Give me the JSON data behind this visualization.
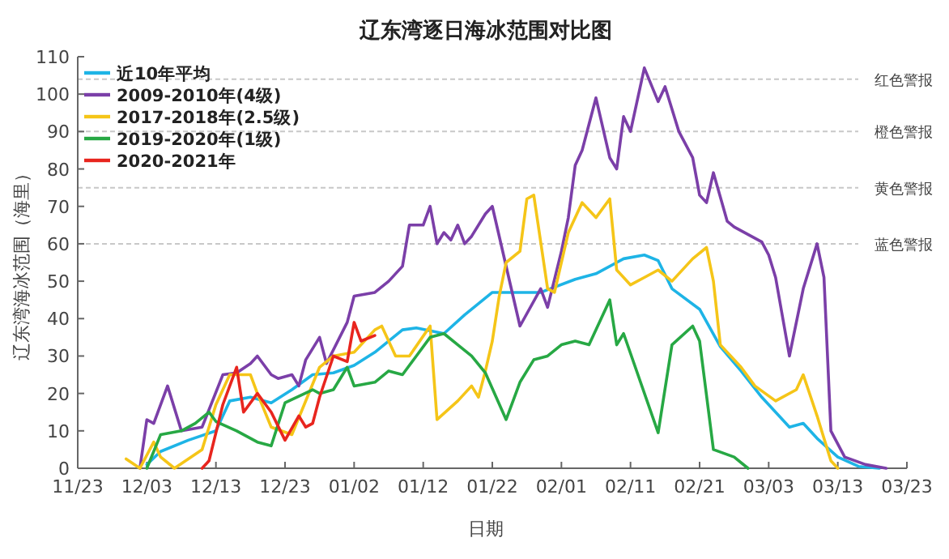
{
  "chart_data": {
    "type": "line",
    "title": "辽东湾逐日海冰范围对比图",
    "xlabel": "日期",
    "ylabel": "辽东湾海冰范围（海里）",
    "xlim": [
      "2020-11-23",
      "2021-03-23"
    ],
    "xticks": [
      {
        "value": "2020-11-23",
        "label": "11/23"
      },
      {
        "value": "2020-12-03",
        "label": "12/03"
      },
      {
        "value": "2020-12-13",
        "label": "12/13"
      },
      {
        "value": "2020-12-23",
        "label": "12/23"
      },
      {
        "value": "2021-01-02",
        "label": "01/02"
      },
      {
        "value": "2021-01-12",
        "label": "01/12"
      },
      {
        "value": "2021-01-22",
        "label": "01/22"
      },
      {
        "value": "2021-02-01",
        "label": "02/01"
      },
      {
        "value": "2021-02-11",
        "label": "02/11"
      },
      {
        "value": "2021-02-21",
        "label": "02/21"
      },
      {
        "value": "2021-03-03",
        "label": "03/03"
      },
      {
        "value": "2021-03-13",
        "label": "03/13"
      },
      {
        "value": "2021-03-23",
        "label": "03/23"
      }
    ],
    "ylim": [
      0,
      110
    ],
    "yticks": [
      0,
      10,
      20,
      30,
      40,
      50,
      60,
      70,
      80,
      90,
      100,
      110
    ],
    "legend": "top left",
    "ref_lines": [
      {
        "axis": "y",
        "value": 104,
        "label": "红色警报",
        "color": "#c8c8c8",
        "line_style": "dashed"
      },
      {
        "axis": "y",
        "value": 90,
        "label": "橙色警报",
        "color": "#c8c8c8",
        "line_style": "dashed"
      },
      {
        "axis": "y",
        "value": 75,
        "label": "黄色警报",
        "color": "#c8c8c8",
        "line_style": "dashed"
      },
      {
        "axis": "y",
        "value": 60,
        "label": "蓝色警报",
        "color": "#c8c8c8",
        "line_style": "dashed"
      }
    ],
    "series": [
      {
        "name": "近10年平均",
        "color": "#1eb4e6",
        "x": [
          "2020-12-03",
          "2020-12-05",
          "2020-12-09",
          "2020-12-13",
          "2020-12-15",
          "2020-12-18",
          "2020-12-21",
          "2020-12-24",
          "2020-12-27",
          "2020-12-30",
          "2021-01-02",
          "2021-01-05",
          "2021-01-09",
          "2021-01-11",
          "2021-01-15",
          "2021-01-18",
          "2021-01-22",
          "2021-01-29",
          "2021-02-03",
          "2021-02-06",
          "2021-02-10",
          "2021-02-13",
          "2021-02-15",
          "2021-02-17",
          "2021-02-21",
          "2021-02-24",
          "2021-02-27",
          "2021-03-02",
          "2021-03-06",
          "2021-03-08",
          "2021-03-10",
          "2021-03-13",
          "2021-03-16",
          "2021-03-19"
        ],
        "values": [
          1,
          4.5,
          7.5,
          10,
          18,
          19,
          17.5,
          21,
          25,
          25.5,
          27.5,
          31,
          37,
          37.5,
          36,
          41,
          47,
          47,
          50.5,
          52,
          56,
          57,
          55.5,
          48,
          42.5,
          32.5,
          26,
          19,
          11,
          12,
          8,
          3,
          0.5,
          0
        ]
      },
      {
        "name": "2009-2010年(4级)",
        "color": "#7b3fa8",
        "x": [
          "2020-12-02",
          "2020-12-03",
          "2020-12-04",
          "2020-12-06",
          "2020-12-08",
          "2020-12-11",
          "2020-12-14",
          "2020-12-16",
          "2020-12-18",
          "2020-12-19",
          "2020-12-21",
          "2020-12-22",
          "2020-12-24",
          "2020-12-25",
          "2020-12-26",
          "2020-12-28",
          "2020-12-29",
          "2021-01-01",
          "2021-01-02",
          "2021-01-05",
          "2021-01-07",
          "2021-01-09",
          "2021-01-10",
          "2021-01-12",
          "2021-01-13",
          "2021-01-14",
          "2021-01-15",
          "2021-01-16",
          "2021-01-17",
          "2021-01-18",
          "2021-01-19",
          "2021-01-21",
          "2021-01-22",
          "2021-01-26",
          "2021-01-29",
          "2021-01-30",
          "2021-02-01",
          "2021-02-02",
          "2021-02-03",
          "2021-02-04",
          "2021-02-06",
          "2021-02-08",
          "2021-02-09",
          "2021-02-10",
          "2021-02-11",
          "2021-02-13",
          "2021-02-15",
          "2021-02-16",
          "2021-02-18",
          "2021-02-20",
          "2021-02-21",
          "2021-02-22",
          "2021-02-23",
          "2021-02-25",
          "2021-02-26",
          "2021-03-02",
          "2021-03-03",
          "2021-03-04",
          "2021-03-06",
          "2021-03-08",
          "2021-03-10",
          "2021-03-11",
          "2021-03-12",
          "2021-03-14",
          "2021-03-17",
          "2021-03-20"
        ],
        "values": [
          0,
          13,
          12,
          22,
          10,
          11,
          25,
          25.5,
          28,
          30,
          25,
          24,
          25,
          22,
          29,
          35,
          28,
          39,
          46,
          47,
          50,
          54,
          65,
          65,
          70,
          60,
          63,
          61,
          65,
          60,
          62,
          68,
          70,
          38,
          48,
          43,
          58,
          67,
          81,
          85,
          99,
          83,
          80,
          94,
          90,
          107,
          98,
          102,
          90,
          83,
          73,
          71,
          79,
          66,
          64.5,
          60.5,
          57,
          51,
          30,
          48,
          60,
          51,
          10,
          3,
          1,
          0
        ]
      },
      {
        "name": "2017-2018年(2.5级)",
        "color": "#f5c518",
        "x": [
          "2020-11-30",
          "2020-12-02",
          "2020-12-04",
          "2020-12-05",
          "2020-12-07",
          "2020-12-11",
          "2020-12-13",
          "2020-12-15",
          "2020-12-18",
          "2020-12-19",
          "2020-12-21",
          "2020-12-24",
          "2020-12-28",
          "2020-12-30",
          "2021-01-02",
          "2021-01-05",
          "2021-01-06",
          "2021-01-08",
          "2021-01-10",
          "2021-01-13",
          "2021-01-14",
          "2021-01-17",
          "2021-01-19",
          "2021-01-20",
          "2021-01-21",
          "2021-01-22",
          "2021-01-23",
          "2021-01-24",
          "2021-01-26",
          "2021-01-27",
          "2021-01-28",
          "2021-01-30",
          "2021-01-31",
          "2021-02-02",
          "2021-02-04",
          "2021-02-06",
          "2021-02-08",
          "2021-02-09",
          "2021-02-11",
          "2021-02-13",
          "2021-02-15",
          "2021-02-17",
          "2021-02-20",
          "2021-02-22",
          "2021-02-23",
          "2021-02-24",
          "2021-02-27",
          "2021-03-01",
          "2021-03-04",
          "2021-03-07",
          "2021-03-08",
          "2021-03-10",
          "2021-03-12",
          "2021-03-13"
        ],
        "values": [
          2.5,
          0,
          7,
          3,
          0,
          5,
          17,
          25,
          25,
          20,
          11,
          9,
          27,
          30,
          31,
          37,
          38,
          30,
          30,
          38,
          13,
          18,
          22,
          19,
          26,
          34,
          46,
          55,
          58,
          72,
          73,
          48,
          47,
          63,
          71,
          67,
          72,
          53,
          49,
          51,
          53,
          50,
          56,
          59,
          50,
          33,
          27,
          22,
          18,
          21,
          25,
          14,
          2,
          0
        ]
      },
      {
        "name": "2019-2020年(1级)",
        "color": "#27a844",
        "x": [
          "2020-12-03",
          "2020-12-05",
          "2020-12-08",
          "2020-12-10",
          "2020-12-12",
          "2020-12-13",
          "2020-12-16",
          "2020-12-19",
          "2020-12-21",
          "2020-12-23",
          "2020-12-27",
          "2020-12-28",
          "2020-12-30",
          "2021-01-01",
          "2021-01-02",
          "2021-01-05",
          "2021-01-07",
          "2021-01-09",
          "2021-01-11",
          "2021-01-13",
          "2021-01-15",
          "2021-01-17",
          "2021-01-19",
          "2021-01-21",
          "2021-01-24",
          "2021-01-26",
          "2021-01-28",
          "2021-01-30",
          "2021-02-01",
          "2021-02-03",
          "2021-02-05",
          "2021-02-08",
          "2021-02-09",
          "2021-02-10",
          "2021-02-15",
          "2021-02-17",
          "2021-02-20",
          "2021-02-21",
          "2021-02-23",
          "2021-02-26",
          "2021-02-28"
        ],
        "values": [
          0,
          9,
          10,
          12,
          15,
          12.5,
          10,
          7,
          6,
          17.5,
          21,
          20,
          21,
          27,
          22,
          23,
          26,
          25,
          30,
          35,
          36,
          33,
          30,
          25.5,
          13,
          23,
          29,
          30,
          33,
          34,
          33,
          45,
          33,
          36,
          9.5,
          33,
          38,
          34,
          5,
          3,
          0
        ]
      },
      {
        "name": "2020-2021年",
        "color": "#e8251e",
        "x": [
          "2020-12-11",
          "2020-12-12",
          "2020-12-14",
          "2020-12-16",
          "2020-12-17",
          "2020-12-19",
          "2020-12-21",
          "2020-12-23",
          "2020-12-25",
          "2020-12-26",
          "2020-12-27",
          "2020-12-28",
          "2020-12-30",
          "2021-01-01",
          "2021-01-02",
          "2021-01-03",
          "2021-01-05"
        ],
        "values": [
          0,
          2,
          17,
          27,
          15,
          20,
          15,
          7.5,
          14,
          11,
          12,
          19,
          30,
          28.5,
          39,
          34,
          35.5
        ]
      }
    ]
  }
}
